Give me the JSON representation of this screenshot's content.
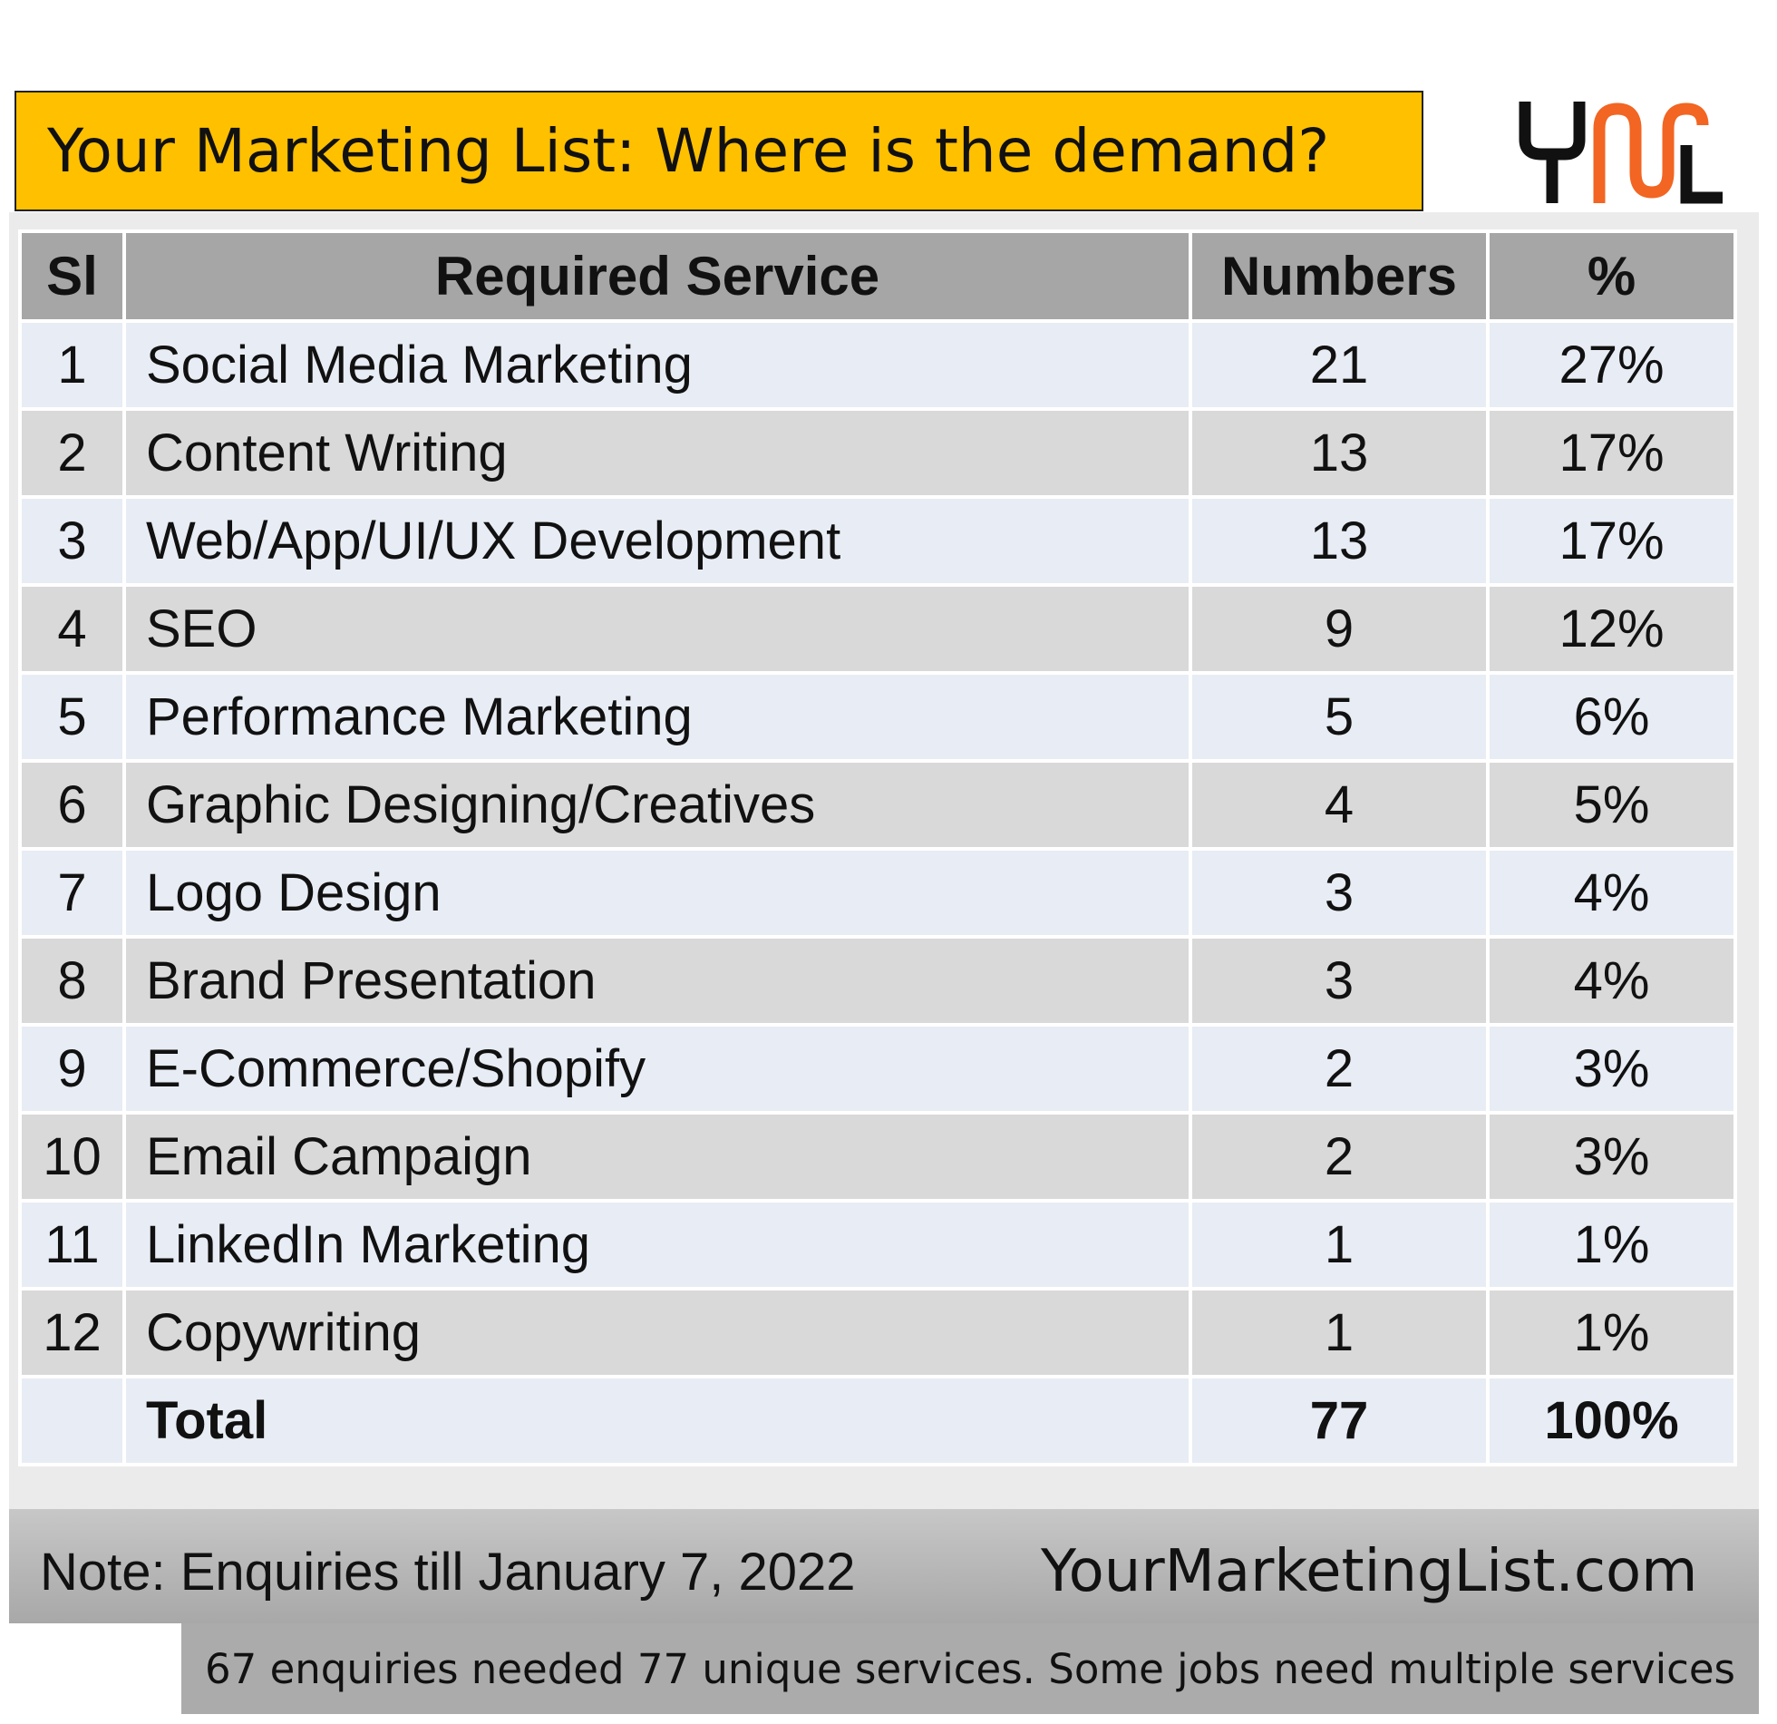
{
  "title": "Your Marketing List: Where is the demand?",
  "logo": {
    "icon": "yml-logo",
    "text": "YML",
    "colors": {
      "dark": "#111111",
      "accent": "#f26522"
    }
  },
  "colors": {
    "title_bg": "#ffc000",
    "header_bg": "#a6a6a6",
    "row_light": "#e8ecf4",
    "row_dark": "#d9d9d9"
  },
  "chart_data": {
    "type": "table",
    "columns": [
      "Sl",
      "Required Service",
      "Numbers",
      "%"
    ],
    "rows": [
      {
        "sl": "1",
        "service": "Social Media Marketing",
        "numbers": "21",
        "percent": "27%"
      },
      {
        "sl": "2",
        "service": "Content Writing",
        "numbers": "13",
        "percent": "17%"
      },
      {
        "sl": "3",
        "service": "Web/App/UI/UX Development",
        "numbers": "13",
        "percent": "17%"
      },
      {
        "sl": "4",
        "service": "SEO",
        "numbers": "9",
        "percent": "12%"
      },
      {
        "sl": "5",
        "service": "Performance Marketing",
        "numbers": "5",
        "percent": "6%"
      },
      {
        "sl": "6",
        "service": "Graphic Designing/Creatives",
        "numbers": "4",
        "percent": "5%"
      },
      {
        "sl": "7",
        "service": "Logo Design",
        "numbers": "3",
        "percent": "4%"
      },
      {
        "sl": "8",
        "service": "Brand Presentation",
        "numbers": "3",
        "percent": "4%"
      },
      {
        "sl": "9",
        "service": "E-Commerce/Shopify",
        "numbers": "2",
        "percent": "3%"
      },
      {
        "sl": "10",
        "service": "Email Campaign",
        "numbers": "2",
        "percent": "3%"
      },
      {
        "sl": "11",
        "service": "LinkedIn Marketing",
        "numbers": "1",
        "percent": "1%"
      },
      {
        "sl": "12",
        "service": "Copywriting",
        "numbers": "1",
        "percent": "1%"
      }
    ],
    "total": {
      "label": "Total",
      "numbers": "77",
      "percent": "100%"
    }
  },
  "note": "Note: Enquiries till January 7, 2022",
  "website": "YourMarketingList.com",
  "caption": "67 enquiries needed 77 unique services. Some jobs need multiple services"
}
